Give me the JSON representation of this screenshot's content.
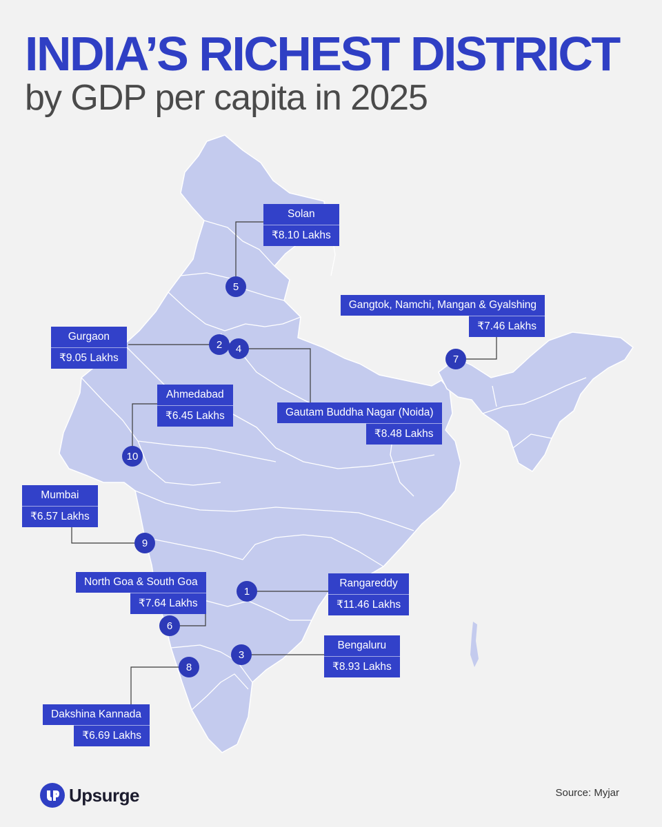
{
  "header": {
    "title": "INDIA’S RICHEST DISTRICT",
    "subtitle": "by GDP per capita in 2025"
  },
  "colors": {
    "title": "#2f3fc4",
    "label_bg": "#3241c9",
    "map_fill": "#c4cbee",
    "map_border": "#ffffff",
    "marker": "#2d3ab8",
    "leader_line": "#3a3a3a"
  },
  "districts": [
    {
      "rank": "1",
      "name": "Rangareddy",
      "value": "₹11.46 Lakhs"
    },
    {
      "rank": "2",
      "name": "Gurgaon",
      "value": "₹9.05 Lakhs"
    },
    {
      "rank": "3",
      "name": "Bengaluru",
      "value": "₹8.93 Lakhs"
    },
    {
      "rank": "4",
      "name": "Gautam Buddha Nagar (Noida)",
      "value": "₹8.48 Lakhs"
    },
    {
      "rank": "5",
      "name": "Solan",
      "value": "₹8.10 Lakhs"
    },
    {
      "rank": "6",
      "name": "North Goa & South Goa",
      "value": "₹7.64 Lakhs"
    },
    {
      "rank": "7",
      "name": "Gangtok, Namchi, Mangan & Gyalshing",
      "value": "₹7.46 Lakhs"
    },
    {
      "rank": "8",
      "name": "Dakshina Kannada",
      "value": "₹6.69 Lakhs"
    },
    {
      "rank": "9",
      "name": "Mumbai",
      "value": "₹6.57 Lakhs"
    },
    {
      "rank": "10",
      "name": "Ahmedabad",
      "value": "₹6.45 Lakhs"
    }
  ],
  "footer": {
    "brand": "Upsurge",
    "logo_icon": "upsurge-logo-icon",
    "source": "Source: Myjar"
  }
}
